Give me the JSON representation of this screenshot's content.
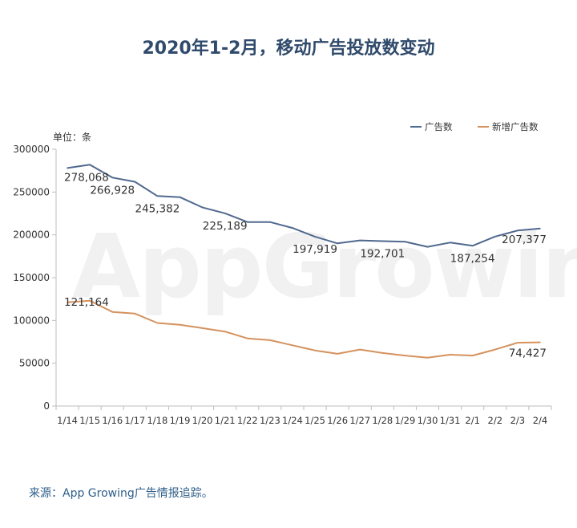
{
  "chart_data": {
    "type": "line",
    "title": "2020年1-2月，移动广告投放数变动",
    "unit_label": "单位：条",
    "categories": [
      "1/14",
      "1/15",
      "1/16",
      "1/17",
      "1/18",
      "1/19",
      "1/20",
      "1/21",
      "1/22",
      "1/23",
      "1/24",
      "1/25",
      "1/26",
      "1/27",
      "1/28",
      "1/29",
      "1/30",
      "1/31",
      "2/1",
      "2/2",
      "2/3",
      "2/4"
    ],
    "ylim": [
      0,
      300000
    ],
    "yticks": [
      0,
      50000,
      100000,
      150000,
      200000,
      250000,
      300000
    ],
    "ytick_labels": [
      "0",
      "50000",
      "100000",
      "150000",
      "200000",
      "250000",
      "300000"
    ],
    "grid": false,
    "legend_position": "top-right",
    "series": [
      {
        "name": "广告数",
        "color": "#50698f",
        "values": [
          278068,
          282000,
          266928,
          262000,
          245382,
          244000,
          232000,
          225189,
          215000,
          215000,
          208000,
          197919,
          190000,
          193500,
          192701,
          192000,
          186000,
          191000,
          187254,
          198000,
          205000,
          207377
        ],
        "data_labels": [
          {
            "index": 0,
            "text": "278,068"
          },
          {
            "index": 2,
            "text": "266,928"
          },
          {
            "index": 4,
            "text": "245,382"
          },
          {
            "index": 7,
            "text": "225,189"
          },
          {
            "index": 11,
            "text": "197,919"
          },
          {
            "index": 14,
            "text": "192,701"
          },
          {
            "index": 18,
            "text": "187,254"
          },
          {
            "index": 21,
            "text": "207,377"
          }
        ]
      },
      {
        "name": "新增广告数",
        "color": "#d5925e",
        "values": [
          121164,
          123000,
          110000,
          108000,
          97000,
          95000,
          91000,
          87000,
          79000,
          77000,
          71000,
          65000,
          61000,
          66000,
          62000,
          59000,
          56500,
          60000,
          59000,
          66000,
          74000,
          74427
        ],
        "data_labels": [
          {
            "index": 0,
            "text": "121,164"
          },
          {
            "index": 21,
            "text": "74,427"
          }
        ]
      }
    ]
  },
  "watermark": "AppGrowing",
  "source": "来源：App Growing广告情报追踪。"
}
